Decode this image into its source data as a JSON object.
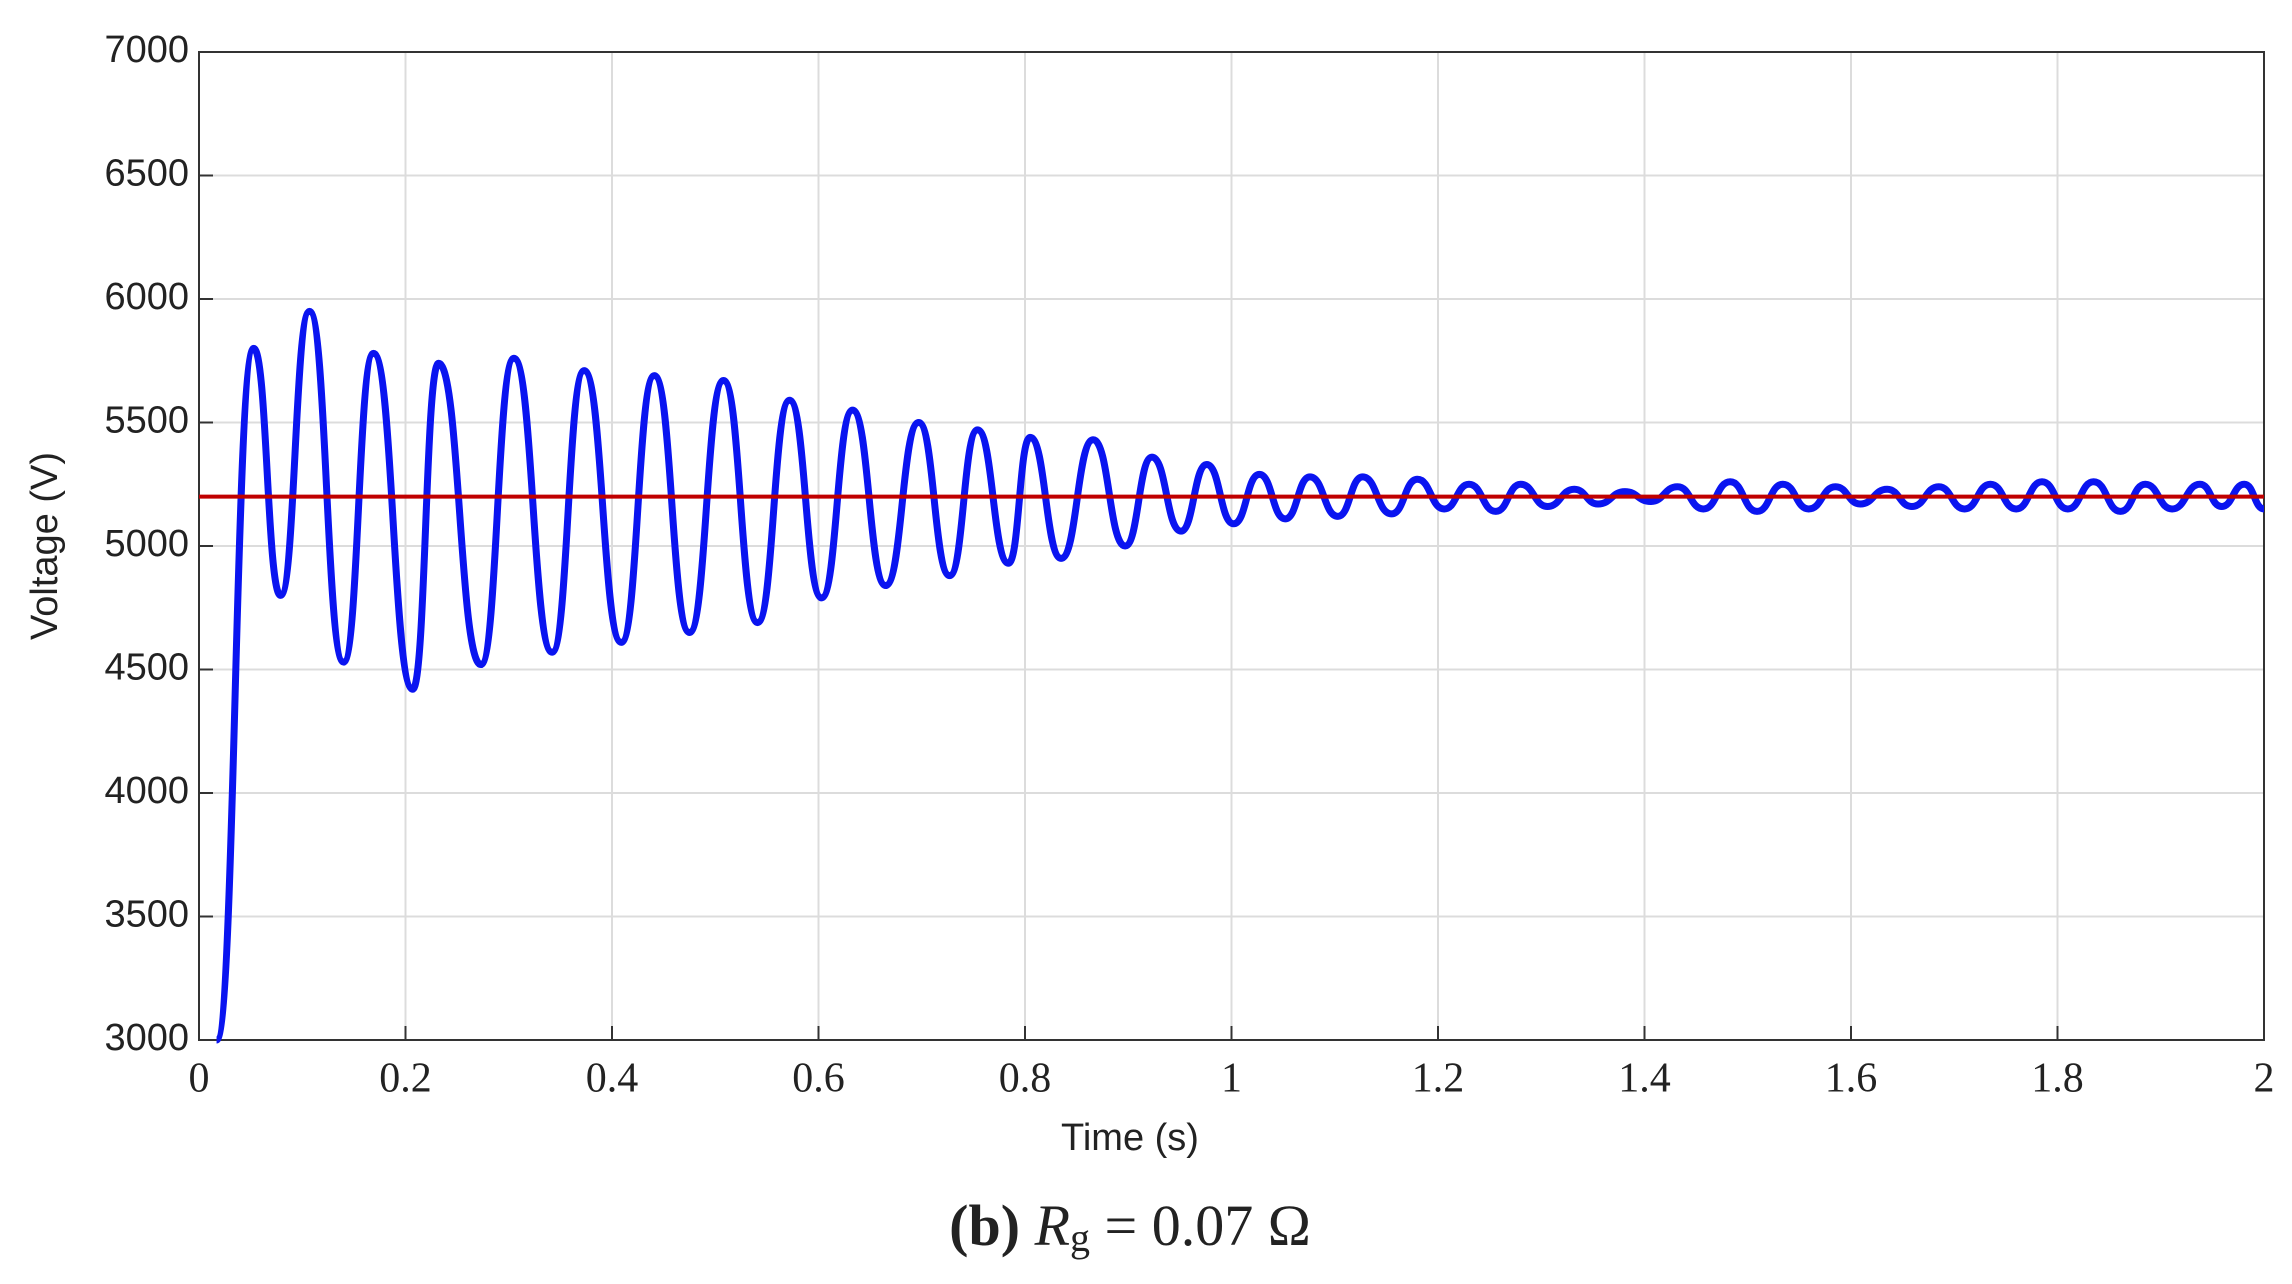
{
  "chart_data": {
    "type": "line",
    "xlabel": "Time (s)",
    "ylabel": "Voltage (V)",
    "caption": {
      "label": "(b)",
      "symbol": "R",
      "subscript": "g",
      "value": "= 0.07 Ω"
    },
    "xlim": [
      0,
      2
    ],
    "ylim": [
      3000,
      7000
    ],
    "xticks": [
      0,
      0.2,
      0.4,
      0.6,
      0.8,
      1,
      1.2,
      1.4,
      1.6,
      1.8,
      2
    ],
    "yticks": [
      3000,
      3500,
      4000,
      4500,
      5000,
      5500,
      6000,
      6500,
      7000
    ],
    "grid": true,
    "series": [
      {
        "color": "#0a14f0",
        "x": [
          0.017,
          0.053,
          0.079,
          0.107,
          0.14,
          0.169,
          0.207,
          0.232,
          0.273,
          0.305,
          0.342,
          0.373,
          0.409,
          0.441,
          0.475,
          0.508,
          0.541,
          0.572,
          0.603,
          0.633,
          0.665,
          0.697,
          0.727,
          0.754,
          0.784,
          0.805,
          0.835,
          0.866,
          0.897,
          0.923,
          0.951,
          0.976,
          1.002,
          1.027,
          1.052,
          1.076,
          1.103,
          1.127,
          1.155,
          1.18,
          1.206,
          1.23,
          1.256,
          1.28,
          1.306,
          1.332,
          1.355,
          1.381,
          1.406,
          1.432,
          1.457,
          1.483,
          1.509,
          1.534,
          1.559,
          1.585,
          1.609,
          1.635,
          1.659,
          1.685,
          1.71,
          1.735,
          1.76,
          1.785,
          1.81,
          1.835,
          1.861,
          1.885,
          1.911,
          1.938,
          1.959,
          1.981,
          2.0
        ],
        "values": [
          3000,
          5800,
          4800,
          5950,
          4530,
          5780,
          4420,
          5740,
          4520,
          5760,
          4570,
          5710,
          4610,
          5690,
          4650,
          5670,
          4690,
          5590,
          4790,
          5550,
          4840,
          5500,
          4880,
          5470,
          4930,
          5440,
          4950,
          5430,
          5000,
          5360,
          5060,
          5330,
          5090,
          5290,
          5110,
          5280,
          5120,
          5280,
          5130,
          5270,
          5150,
          5250,
          5140,
          5250,
          5160,
          5230,
          5170,
          5220,
          5180,
          5240,
          5150,
          5260,
          5140,
          5250,
          5150,
          5240,
          5170,
          5230,
          5160,
          5240,
          5150,
          5250,
          5150,
          5260,
          5150,
          5260,
          5140,
          5250,
          5150,
          5250,
          5160,
          5250,
          5150
        ]
      },
      {
        "color": "#c00000",
        "x": [
          0,
          2
        ],
        "values": [
          5200,
          5200
        ]
      }
    ]
  }
}
